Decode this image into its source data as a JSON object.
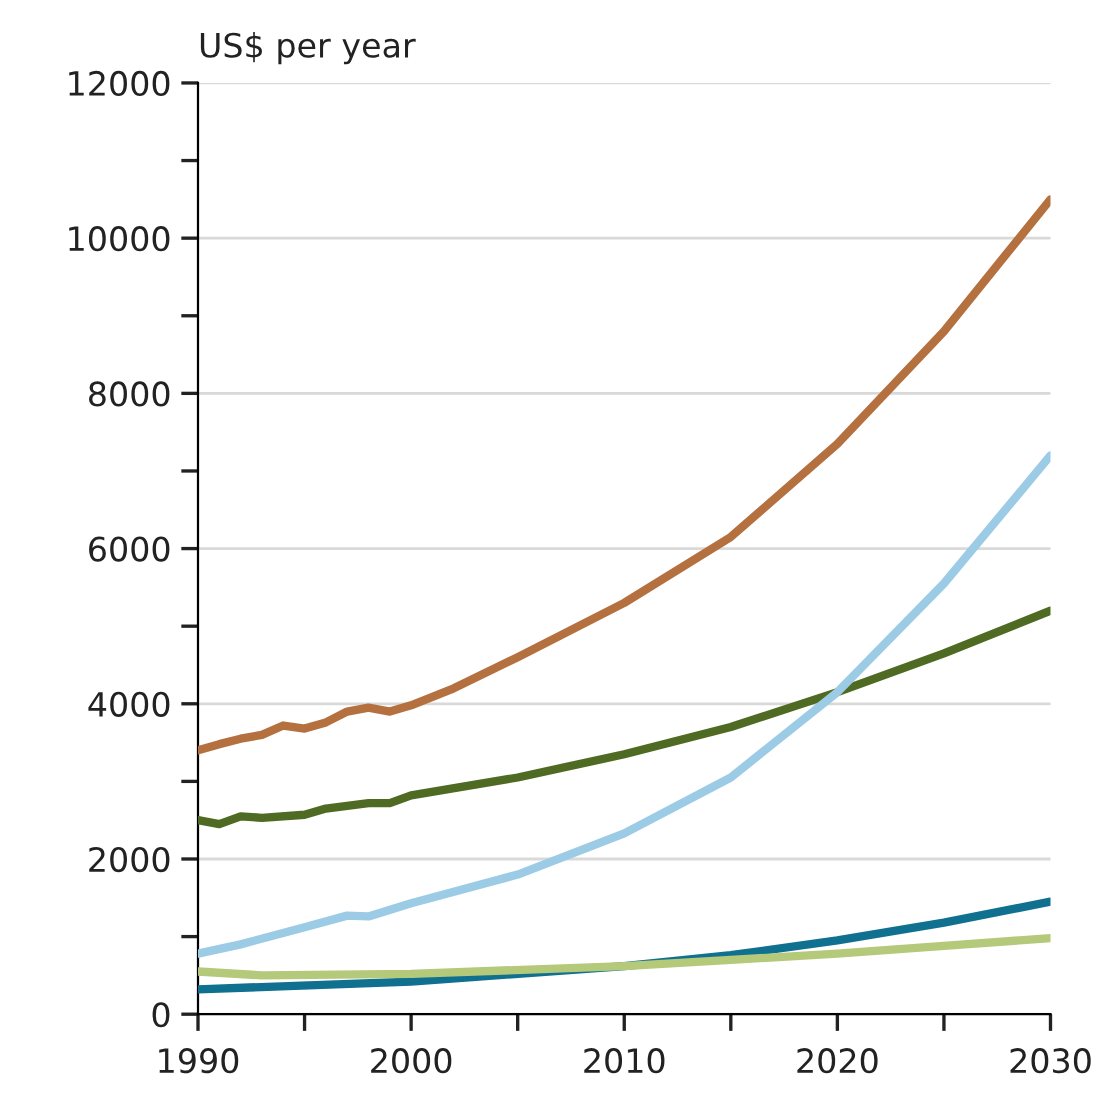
{
  "chart_data": {
    "type": "line",
    "ylabel": "US$ per year",
    "xlim": [
      1990,
      2030
    ],
    "ylim": [
      0,
      12000
    ],
    "xticks": [
      1990,
      {
        "value": 1995,
        "label": null
      },
      2000,
      {
        "value": 2005,
        "label": null
      },
      2010,
      {
        "value": 2015,
        "label": null
      },
      2020,
      {
        "value": 2025,
        "label": null
      },
      2030
    ],
    "yticks": [
      0,
      {
        "value": 1000,
        "label": null
      },
      2000,
      {
        "value": 3000,
        "label": null
      },
      4000,
      {
        "value": 5000,
        "label": null
      },
      6000,
      {
        "value": 7000,
        "label": null
      },
      8000,
      {
        "value": 9000,
        "label": null
      },
      10000,
      {
        "value": 11000,
        "label": null
      },
      12000
    ],
    "grid": "y",
    "legend": false,
    "marker": "none",
    "line_style": "solid",
    "series": [
      {
        "color": "#b5703f",
        "x": [
          1990,
          1991,
          1992,
          1993,
          1994,
          1995,
          1996,
          1997,
          1998,
          1999,
          2000,
          2002,
          2005,
          2010,
          2015,
          2020,
          2025,
          2030
        ],
        "values": [
          3400,
          3480,
          3550,
          3600,
          3720,
          3680,
          3760,
          3900,
          3950,
          3900,
          3980,
          4200,
          4600,
          5300,
          6150,
          7350,
          8800,
          10500
        ]
      },
      {
        "color": "#4f6b23",
        "x": [
          1990,
          1991,
          1992,
          1993,
          1995,
          1996,
          1998,
          1999,
          2000,
          2005,
          2010,
          2015,
          2020,
          2025,
          2030
        ],
        "values": [
          2500,
          2450,
          2550,
          2530,
          2570,
          2650,
          2720,
          2720,
          2820,
          3050,
          3350,
          3700,
          4150,
          4650,
          5200
        ]
      },
      {
        "color": "#9ccbe6",
        "x": [
          1990,
          1992,
          1995,
          1997,
          1998,
          2000,
          2005,
          2010,
          2015,
          2020,
          2025,
          2030
        ],
        "values": [
          780,
          900,
          1120,
          1270,
          1260,
          1430,
          1800,
          2330,
          3050,
          4150,
          5550,
          7200
        ]
      },
      {
        "color": "#10708f",
        "x": [
          1990,
          2000,
          2010,
          2015,
          2020,
          2025,
          2030
        ],
        "values": [
          320,
          420,
          620,
          760,
          950,
          1180,
          1450
        ]
      },
      {
        "color": "#b5c97a",
        "x": [
          1990,
          1993,
          2000,
          2010,
          2015,
          2020,
          2025,
          2030
        ],
        "values": [
          550,
          500,
          520,
          620,
          700,
          780,
          880,
          980
        ]
      }
    ]
  }
}
